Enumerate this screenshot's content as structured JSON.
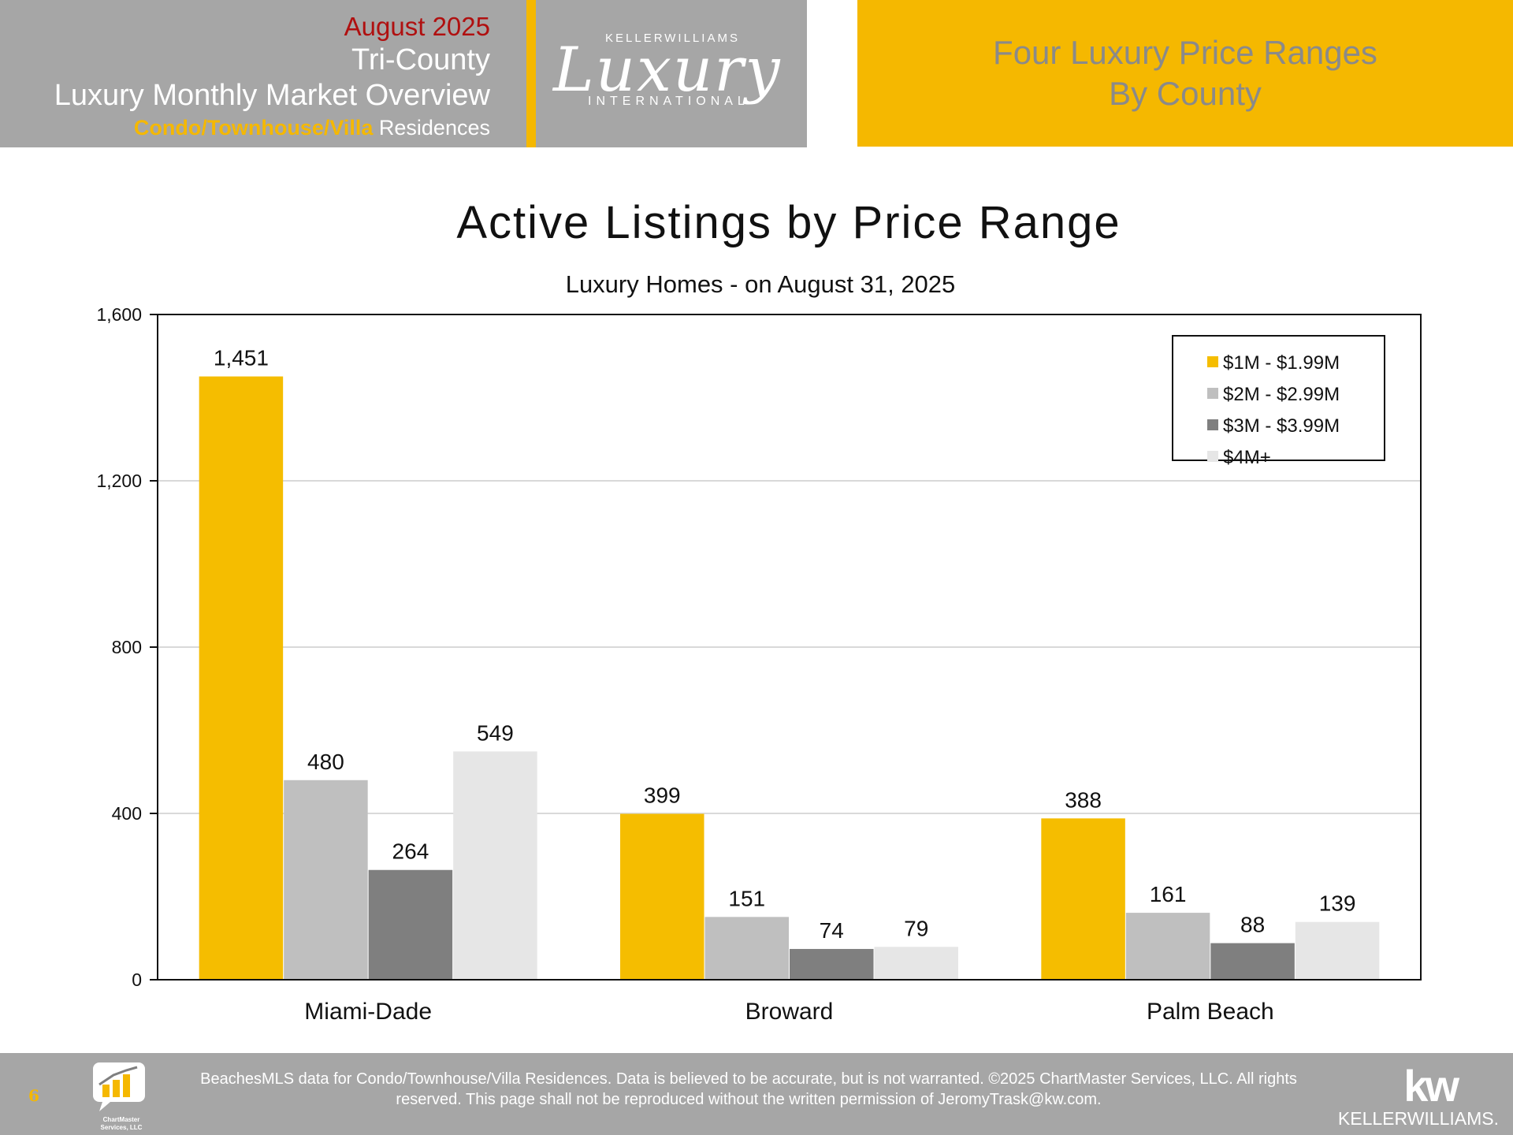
{
  "header": {
    "month": "August 2025",
    "region": "Tri-County",
    "title": "Luxury Monthly Market Overview",
    "type_accent": "Condo/Townhouse/Villa",
    "type_rest": " Residences",
    "logo": {
      "brand_top": "KELLERWILLIAMS",
      "brand_main": "Luxury",
      "brand_bottom": "INTERNATIONAL"
    },
    "section_line1": "Four Luxury Price Ranges",
    "section_line2": "By County"
  },
  "colors": {
    "gold": "#f5b800",
    "header_gray": "#a6a6a6",
    "month_red": "#b01010"
  },
  "chart_data": {
    "type": "bar",
    "title": "Active Listings by Price Range",
    "subtitle": "Luxury Homes - on August 31, 2025",
    "xlabel": "",
    "ylabel": "",
    "categories": [
      "Miami-Dade",
      "Broward",
      "Palm Beach"
    ],
    "series": [
      {
        "name": "$1M - $1.99M",
        "color": "#f5bd00",
        "values": [
          1451,
          399,
          388
        ],
        "labels": [
          "1,451",
          "399",
          "388"
        ]
      },
      {
        "name": "$2M - $2.99M",
        "color": "#bfbfbf",
        "values": [
          480,
          151,
          161
        ],
        "labels": [
          "480",
          "151",
          "161"
        ]
      },
      {
        "name": "$3M - $3.99M",
        "color": "#7f7f7f",
        "values": [
          264,
          74,
          88
        ],
        "labels": [
          "264",
          "74",
          "88"
        ]
      },
      {
        "name": "$4M+",
        "color": "#e6e6e6",
        "values": [
          549,
          79,
          139
        ],
        "labels": [
          "549",
          "79",
          "139"
        ]
      }
    ],
    "ylim": [
      0,
      1600
    ],
    "yticks": [
      0,
      400,
      800,
      1200,
      1600
    ],
    "ytick_labels": [
      "0",
      "400",
      "800",
      "1,200",
      "1,600"
    ],
    "grid": true,
    "legend_position": "top-right"
  },
  "footer": {
    "page_number": "6",
    "chartmaster_line1": "ChartMaster",
    "chartmaster_line2": "Services, LLC",
    "disclaimer": "BeachesMLS data for Condo/Townhouse/Villa Residences.  Data is believed to be accurate, but is not warranted.   ©2025  ChartMaster Services, LLC.  All rights reserved. This page shall not be reproduced without the written permission of JeromyTrask@kw.com.",
    "kw_mark": "kw",
    "kw_word": "KELLERWILLIAMS."
  }
}
